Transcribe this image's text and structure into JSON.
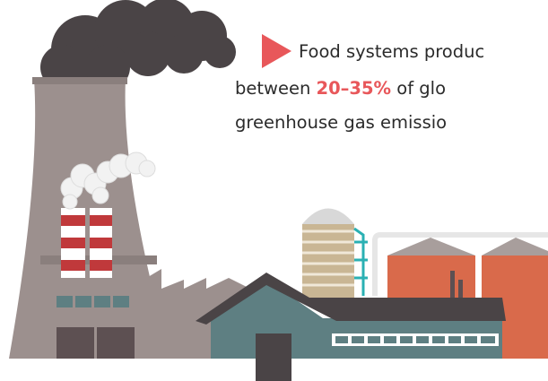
{
  "caption": {
    "line1": "Food systems produc",
    "line2_start": "between ",
    "highlight": "20–35%",
    "line2_end": " of glo",
    "line3": "greenhouse gas emissio"
  }
}
